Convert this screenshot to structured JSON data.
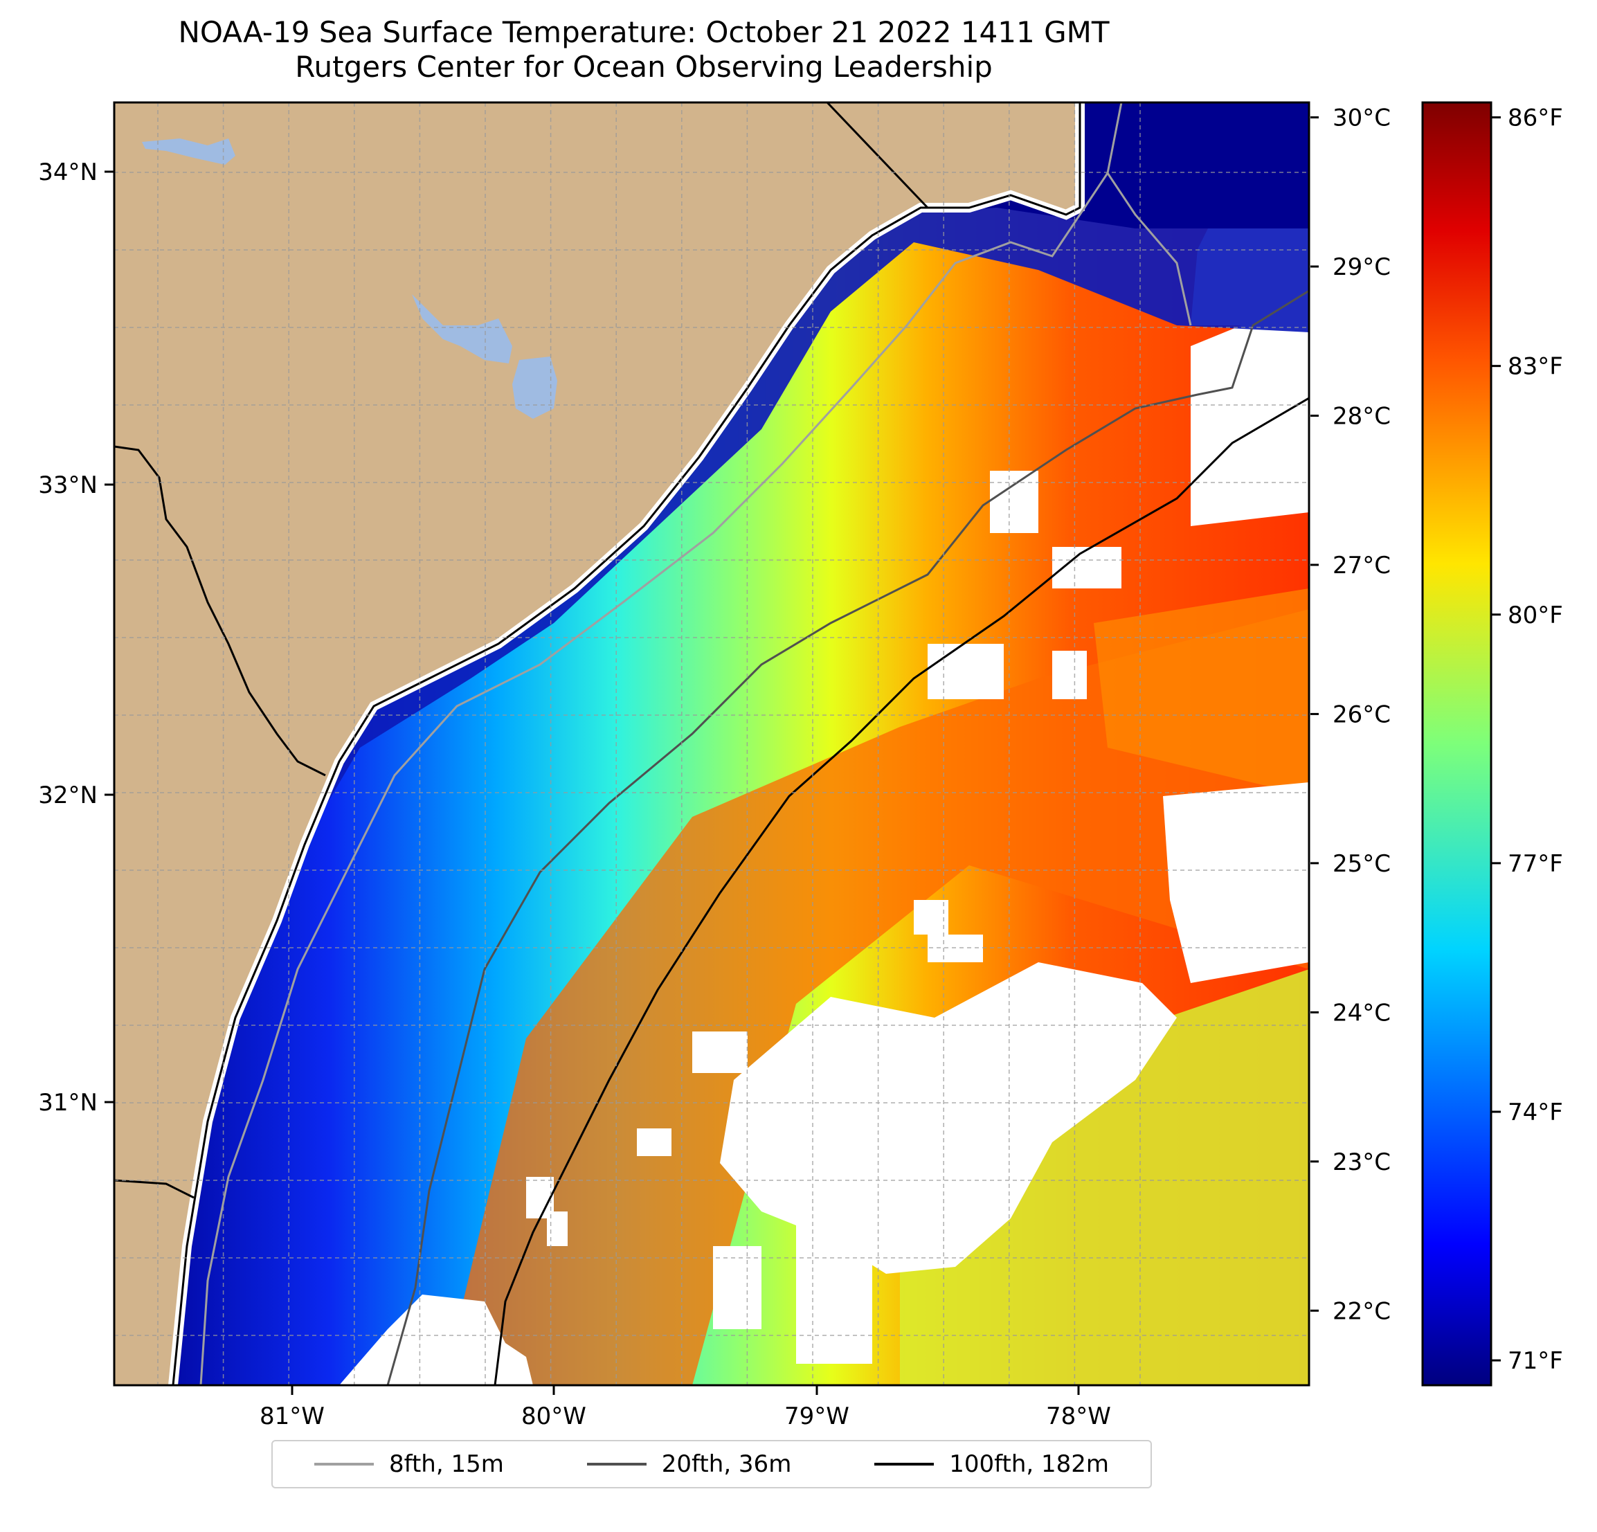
{
  "title": {
    "line1": "NOAA-19 Sea Surface Temperature: October 21 2022 1411 GMT",
    "line2": "Rutgers Center for Ocean Observing Leadership"
  },
  "colors": {
    "land": "#d2b48c",
    "lakes": "#9fbbe2",
    "ocean_cold": "#00008f",
    "ocean_warm": "#ff4400",
    "grid": "#b0b0b0",
    "isobath_8fth": "#a0a0a0",
    "isobath_20fth": "#505050",
    "isobath_100fth": "#000000"
  },
  "map": {
    "lon_labels": [
      "81°W",
      "80°W",
      "79°W",
      "78°W"
    ],
    "lat_labels": [
      "34°N",
      "33°N",
      "32°N",
      "31°N"
    ]
  },
  "colorbar": {
    "celsius_labels": [
      "30°C",
      "29°C",
      "28°C",
      "27°C",
      "26°C",
      "25°C",
      "24°C",
      "23°C",
      "22°C"
    ],
    "fahrenheit_labels": [
      "86°F",
      "83°F",
      "80°F",
      "77°F",
      "74°F",
      "71°F"
    ],
    "min_c": 21.5,
    "max_c": 30.1
  },
  "legend": {
    "items": [
      {
        "label": "8fth, 15m",
        "color": "#a0a0a0"
      },
      {
        "label": "20fth, 36m",
        "color": "#505050"
      },
      {
        "label": "100fth, 182m",
        "color": "#000000"
      }
    ]
  }
}
